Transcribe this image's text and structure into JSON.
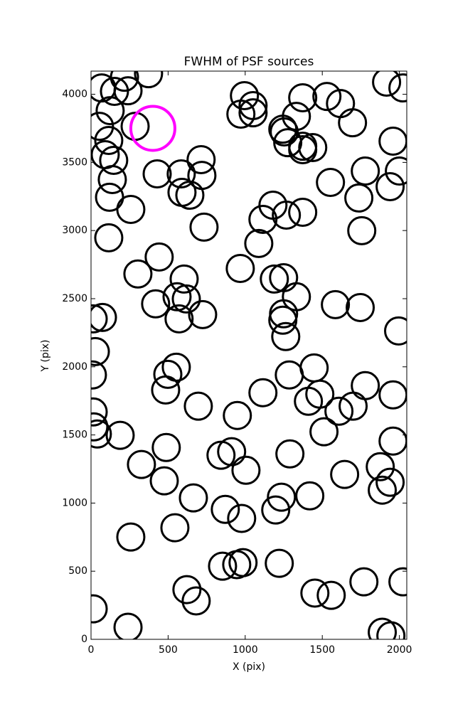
{
  "chart_data": {
    "type": "scatter",
    "title": "FWHM of PSF sources",
    "xlabel": "X (pix)",
    "ylabel": "Y (pix)",
    "xlim": [
      0,
      2048
    ],
    "ylim": [
      0,
      4170
    ],
    "xticks": [
      0,
      500,
      1000,
      1500,
      2000
    ],
    "yticks": [
      0,
      500,
      1000,
      1500,
      2000,
      2500,
      3000,
      3500,
      4000
    ],
    "series": [
      {
        "color": "#000000",
        "x": [
          69,
          217,
          373,
          240,
          152,
          55,
          124,
          286,
          115,
          92,
          147,
          138,
          120,
          258,
          115,
          429,
          585,
          719,
          714,
          590,
          641,
          733,
          442,
          304,
          604,
          419,
          558,
          618,
          571,
          724,
          74,
          14,
          28,
          9,
          498,
          553,
          484,
          696,
          14,
          18,
          41,
          189,
          488,
          327,
          475,
          664,
          544,
          258,
          14,
          240,
          622,
          682,
          853,
          945,
          986,
          871,
          977,
          843,
          912,
          1005,
          949,
          1115,
          968,
          1088,
          1115,
          1180,
          1267,
          1373,
          972,
          995,
          1051,
          1051,
          1244,
          1253,
          1276,
          1332,
          1373,
          1373,
          1373,
          1438,
          1530,
          1618,
          1696,
          1917,
          2023,
          1959,
          2000,
          1940,
          1779,
          1553,
          1737,
          1756,
          1189,
          1249,
          1332,
          1249,
          1244,
          1263,
          1585,
          1746,
          1995,
          1447,
          1286,
          1484,
          1410,
          1608,
          1700,
          1779,
          1959,
          1511,
          1959,
          1290,
          1876,
          1940,
          1889,
          1645,
          1235,
          1419,
          1198,
          1221,
          1452,
          1558,
          1770,
          2023,
          1889,
          1945
        ],
        "y": [
          4047,
          4125,
          4151,
          4026,
          4021,
          3765,
          3880,
          3765,
          3661,
          3557,
          3515,
          3374,
          3244,
          3155,
          2947,
          3416,
          3416,
          3405,
          3520,
          3280,
          3259,
          3025,
          2806,
          2681,
          2644,
          2462,
          2514,
          2498,
          2352,
          2383,
          2362,
          2352,
          2112,
          1940,
          1945,
          1997,
          1830,
          1711,
          1669,
          1559,
          1507,
          1497,
          1408,
          1283,
          1163,
          1038,
          819,
          751,
          224,
          89,
          365,
          282,
          537,
          548,
          563,
          954,
          887,
          1351,
          1377,
          1241,
          1643,
          1810,
          2722,
          2905,
          3082,
          3186,
          3113,
          3134,
          3854,
          3990,
          3917,
          3864,
          3744,
          3724,
          3645,
          3838,
          3974,
          3619,
          3593,
          3609,
          3984,
          3932,
          3791,
          4089,
          4047,
          3656,
          3437,
          3322,
          3437,
          3353,
          3239,
          2999,
          2644,
          2654,
          2514,
          2389,
          2342,
          2222,
          2456,
          2435,
          2263,
          1992,
          1940,
          1799,
          1747,
          1674,
          1711,
          1862,
          1794,
          1523,
          1455,
          1361,
          1267,
          1153,
          1095,
          1210,
          1043,
          1053,
          949,
          558,
          339,
          323,
          422,
          422,
          52,
          26
        ]
      },
      {
        "color": "#ff00ff",
        "x": [
          401
        ],
        "y": [
          3750
        ]
      }
    ]
  }
}
